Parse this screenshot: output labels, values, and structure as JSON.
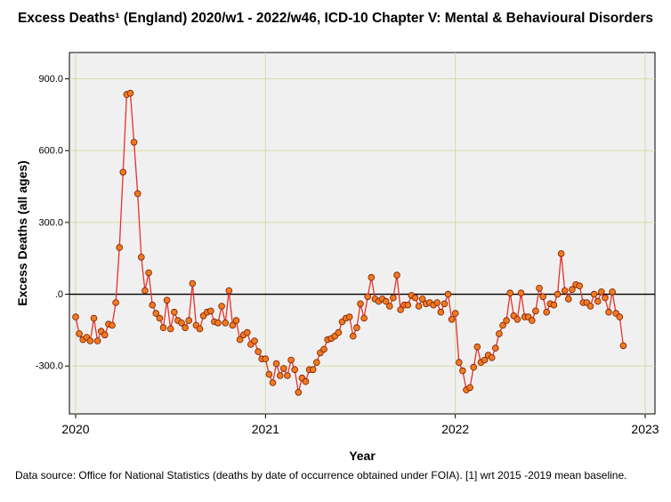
{
  "chart_data": {
    "type": "line",
    "title": "Excess Deaths¹ (England) 2020/w1 - 2022/w46, ICD-10 Chapter V: Mental & Behavioural Disorders",
    "xlabel": "Year",
    "ylabel": "Excess Deaths (all ages)",
    "xlim": [
      2020.0,
      2023.0
    ],
    "ylim": [
      -500,
      1010
    ],
    "x_ticks": [
      {
        "value": 2020,
        "label": "2020"
      },
      {
        "value": 2021,
        "label": "2021"
      },
      {
        "value": 2022,
        "label": "2022"
      },
      {
        "value": 2023,
        "label": "2023"
      }
    ],
    "y_ticks": [
      {
        "value": 900,
        "label": "900.0"
      },
      {
        "value": 600,
        "label": "600.0"
      },
      {
        "value": 300,
        "label": "300.0"
      },
      {
        "value": 0,
        "label": ".0"
      },
      {
        "value": -300,
        "label": "-300.0"
      }
    ],
    "grid": true,
    "reference_line": 0,
    "series": [
      {
        "name": "Excess deaths",
        "start_year": 2020,
        "weeks_per_year": 52,
        "values": [
          -95,
          -165,
          -190,
          -180,
          -195,
          -100,
          -195,
          -155,
          -170,
          -125,
          -130,
          -35,
          195,
          510,
          835,
          840,
          635,
          420,
          155,
          15,
          90,
          -45,
          -80,
          -100,
          -140,
          -25,
          -145,
          -75,
          -110,
          -120,
          -140,
          -110,
          45,
          -130,
          -145,
          -90,
          -75,
          -70,
          -115,
          -120,
          -50,
          -120,
          15,
          -130,
          -110,
          -190,
          -170,
          -160,
          -210,
          -195,
          -240,
          -270,
          -270,
          -335,
          -370,
          -290,
          -340,
          -310,
          -340,
          -275,
          -315,
          -410,
          -350,
          -365,
          -315,
          -315,
          -285,
          -245,
          -230,
          -190,
          -185,
          -175,
          -160,
          -115,
          -100,
          -95,
          -175,
          -140,
          -40,
          -100,
          -10,
          70,
          -20,
          -30,
          -20,
          -30,
          -50,
          -15,
          80,
          -65,
          -45,
          -45,
          -5,
          -15,
          -50,
          -20,
          -40,
          -35,
          -45,
          -35,
          -75,
          -40,
          0,
          -105,
          -80,
          -285,
          -320,
          -400,
          -390,
          -305,
          -220,
          -285,
          -275,
          -255,
          -265,
          -225,
          -165,
          -130,
          -110,
          5,
          -90,
          -105,
          5,
          -95,
          -95,
          -110,
          -70,
          25,
          -10,
          -75,
          -40,
          -45,
          0,
          170,
          15,
          -20,
          20,
          40,
          35,
          -35,
          -35,
          -50,
          0,
          -30,
          10,
          -15,
          -75,
          10,
          -80,
          -95,
          -215
        ]
      }
    ]
  },
  "footnote": "Data source: Office for National Statistics (deaths by date of occurrence obtained under FOIA). [1] wrt 2015 -2019 mean baseline.",
  "colors": {
    "plot_background": "#f0f0f0",
    "gridline": "#d9d9a8",
    "line": "#e8302a",
    "marker_fill": "#f07a20",
    "marker_stroke": "#7a1a00",
    "zero_line": "#000000"
  }
}
